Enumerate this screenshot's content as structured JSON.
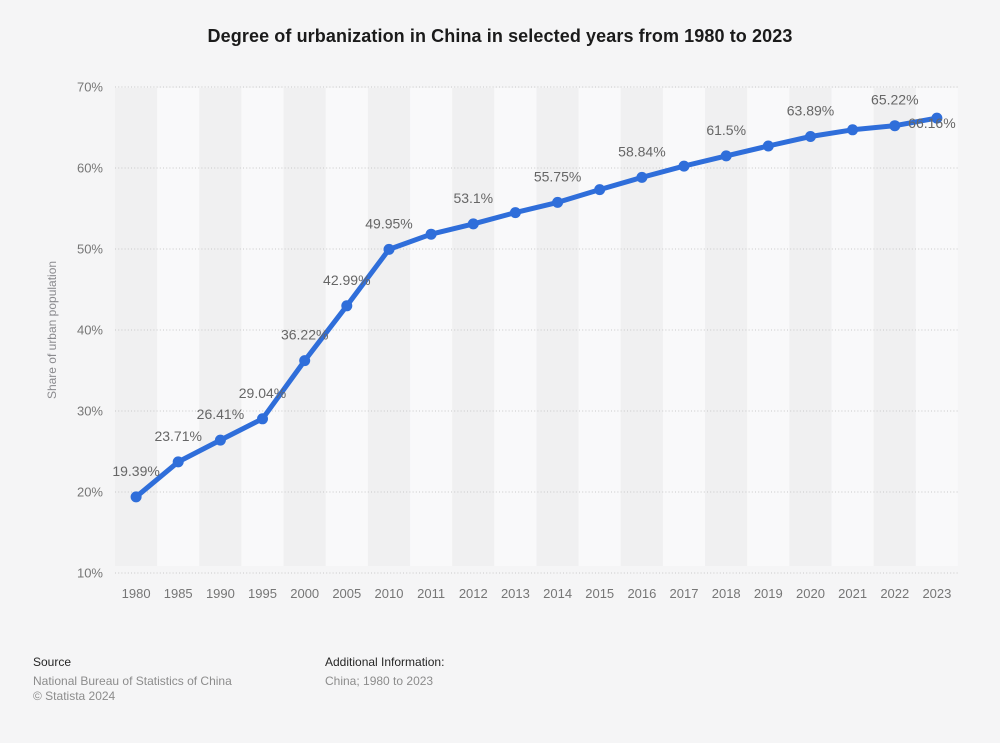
{
  "title": "Degree of urbanization in China in selected years from 1980 to 2023",
  "footer": {
    "source_label": "Source",
    "source_name": "National Bureau of Statistics of China",
    "copyright": "© Statista 2024",
    "additional_info_label": "Additional Information:",
    "additional_info_value": "China; 1980 to 2023"
  },
  "chart_data": {
    "type": "line",
    "title": "Degree of urbanization in China in selected years from 1980 to 2023",
    "xlabel": "",
    "ylabel": "Share of urban population",
    "categories": [
      "1980",
      "1985",
      "1990",
      "1995",
      "2000",
      "2005",
      "2010",
      "2011",
      "2012",
      "2013",
      "2014",
      "2015",
      "2016",
      "2017",
      "2018",
      "2019",
      "2020",
      "2021",
      "2022",
      "2023"
    ],
    "values": [
      19.39,
      23.71,
      26.41,
      29.04,
      36.22,
      42.99,
      49.95,
      51.83,
      53.1,
      54.49,
      55.75,
      57.33,
      58.84,
      60.24,
      61.5,
      62.71,
      63.89,
      64.72,
      65.22,
      66.16
    ],
    "point_labels": [
      "19.39%",
      "23.71%",
      "26.41%",
      "29.04%",
      "36.22%",
      "42.99%",
      "49.95%",
      null,
      "53.1%",
      null,
      "55.75%",
      null,
      "58.84%",
      null,
      "61.5%",
      null,
      "63.89%",
      null,
      "65.22%",
      "66.16%"
    ],
    "ylim": [
      10,
      70
    ],
    "ytick_labels": [
      "10%",
      "20%",
      "30%",
      "40%",
      "50%",
      "60%",
      "70%"
    ],
    "grid": "horizontal-dotted",
    "legend": "none",
    "colors": {
      "line": "#2f6eda",
      "band_dark": "#f0f0f1",
      "band_light": "#f9f9fa",
      "gridline": "#c9c9c9",
      "tick_text": "#767676",
      "data_label_text": "#666666",
      "background": "#f5f5f6"
    }
  }
}
